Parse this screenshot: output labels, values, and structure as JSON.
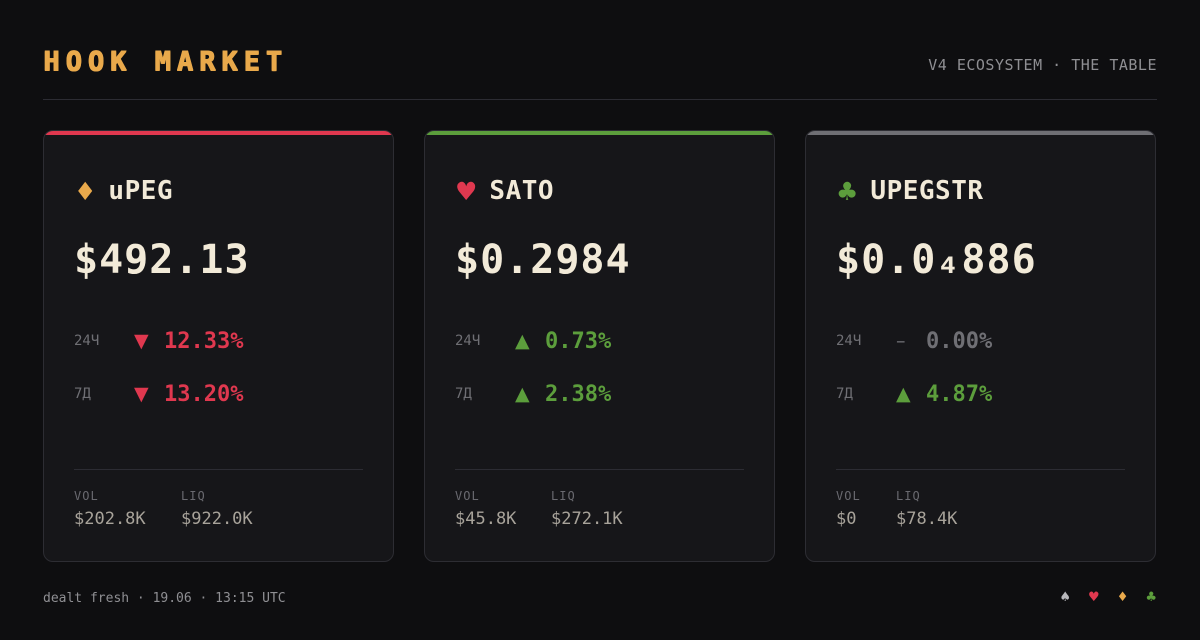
{
  "header": {
    "logo": "HOOK MARKET",
    "subtitle": "V4 ECOSYSTEM · THE TABLE"
  },
  "colors": {
    "background": "#0e0e10",
    "card": "#161619",
    "accent_gold": "#e9a94b",
    "down_red": "#e0384f",
    "up_green": "#5c9e3c",
    "neutral_gray": "#6f6f74"
  },
  "cards": [
    {
      "suit": "♦",
      "suit_icon": "diamond-icon",
      "suit_color": "#e9a94b",
      "accent_color": "#e0384f",
      "ticker": "uPEG",
      "price": "$492.13",
      "changes": [
        {
          "label": "24Ч",
          "arrow": "▼",
          "pct": "12.33%",
          "tone": "red"
        },
        {
          "label": "7Д",
          "arrow": "▼",
          "pct": "13.20%",
          "tone": "red"
        }
      ],
      "stats": [
        {
          "key": "VOL",
          "value": "$202.8K"
        },
        {
          "key": "LIQ",
          "value": "$922.0K"
        }
      ]
    },
    {
      "suit": "♥",
      "suit_icon": "heart-icon",
      "suit_color": "#e0384f",
      "accent_color": "#5c9e3c",
      "ticker": "SATO",
      "price": "$0.2984",
      "changes": [
        {
          "label": "24Ч",
          "arrow": "▲",
          "pct": "0.73%",
          "tone": "green"
        },
        {
          "label": "7Д",
          "arrow": "▲",
          "pct": "2.38%",
          "tone": "green"
        }
      ],
      "stats": [
        {
          "key": "VOL",
          "value": "$45.8K"
        },
        {
          "key": "LIQ",
          "value": "$272.1K"
        }
      ]
    },
    {
      "suit": "♣",
      "suit_icon": "club-icon",
      "suit_color": "#5c9e3c",
      "accent_color": "#6f6f74",
      "ticker": "UPEGSTR",
      "price": "$0.0₄886",
      "changes": [
        {
          "label": "24Ч",
          "arrow": "–",
          "pct": "0.00%",
          "tone": "gray"
        },
        {
          "label": "7Д",
          "arrow": "▲",
          "pct": "4.87%",
          "tone": "green"
        }
      ],
      "stats": [
        {
          "key": "VOL",
          "value": "$0"
        },
        {
          "key": "LIQ",
          "value": "$78.4K"
        }
      ]
    }
  ],
  "footer": {
    "text": "dealt fresh · 19.06 · 13:15 UTC",
    "suits": [
      {
        "glyph": "♠",
        "icon": "spade-icon",
        "color": "#b8b8bc"
      },
      {
        "glyph": "♥",
        "icon": "heart-icon",
        "color": "#e0384f"
      },
      {
        "glyph": "♦",
        "icon": "diamond-icon",
        "color": "#e9a94b"
      },
      {
        "glyph": "♣",
        "icon": "club-icon",
        "color": "#5c9e3c"
      }
    ]
  }
}
